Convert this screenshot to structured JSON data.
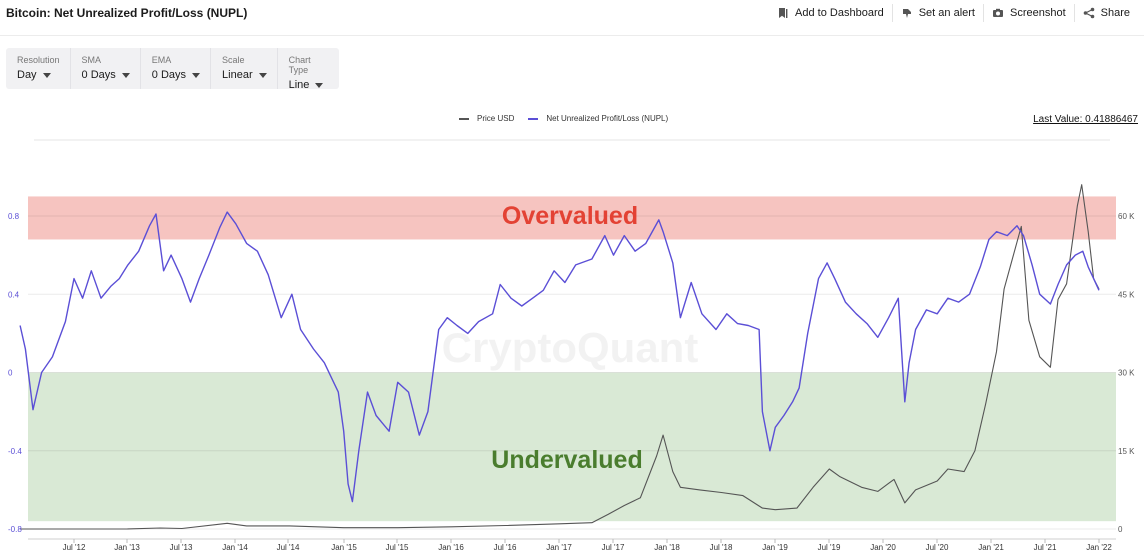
{
  "header": {
    "title": "Bitcoin: Net Unrealized Profit/Loss (NUPL)",
    "actions": [
      {
        "label": "Add to Dashboard",
        "icon": "bookmark-icon"
      },
      {
        "label": "Set an alert",
        "icon": "bell-icon"
      },
      {
        "label": "Screenshot",
        "icon": "camera-icon"
      },
      {
        "label": "Share",
        "icon": "share-icon"
      }
    ]
  },
  "controls": [
    {
      "label": "Resolution",
      "value": "Day"
    },
    {
      "label": "SMA",
      "value": "0 Days"
    },
    {
      "label": "EMA",
      "value": "0 Days"
    },
    {
      "label": "Scale",
      "value": "Linear"
    },
    {
      "label": "Chart Type",
      "value": "Line"
    }
  ],
  "legend": [
    {
      "name": "Price USD",
      "color": "#555555"
    },
    {
      "name": "Net Unrealized Profit/Loss (NUPL)",
      "color": "#5b4fd6"
    }
  ],
  "last_value": "Last Value: 0.41886467",
  "watermark": "CryptoQuant",
  "chart_data": {
    "type": "line",
    "x_ticks": [
      "Jul '12",
      "Jan '13",
      "Jul '13",
      "Jan '14",
      "Jul '14",
      "Jan '15",
      "Jul '15",
      "Jan '16",
      "Jul '16",
      "Jan '17",
      "Jul '17",
      "Jan '18",
      "Jul '18",
      "Jan '19",
      "Jul '19",
      "Jan '20",
      "Jul '20",
      "Jan '21",
      "Jul '21",
      "Jan '22"
    ],
    "x_range": [
      2012.0,
      2022.0
    ],
    "y_left": {
      "ticks": [
        "0.8",
        "0.4",
        "0",
        "-0.4",
        "-0.8"
      ],
      "tick_values": [
        0.8,
        0.4,
        0,
        -0.4,
        -0.8
      ],
      "range": [
        -0.8,
        1.0
      ]
    },
    "y_right": {
      "ticks": [
        "60 K",
        "45 K",
        "30 K",
        "15 K",
        "0"
      ],
      "tick_values": [
        60000,
        45000,
        30000,
        15000,
        0
      ],
      "range": [
        0,
        66000
      ]
    },
    "zones": [
      {
        "label": "Overvalued",
        "from": 0.68,
        "to": 0.9,
        "color": "#f4b5b0",
        "text_color": "#e34234"
      },
      {
        "label": "Undervalued",
        "from": -0.76,
        "to": 0.0,
        "color": "#cfe3cb",
        "text_color": "#4a7d2e"
      }
    ],
    "grid": true,
    "series": [
      {
        "name": "Net Unrealized Profit/Loss (NUPL)",
        "axis": "left",
        "color": "#5b4fd6",
        "points": [
          [
            2012.0,
            0.24
          ],
          [
            2012.05,
            0.12
          ],
          [
            2012.12,
            -0.19
          ],
          [
            2012.2,
            0.0
          ],
          [
            2012.3,
            0.08
          ],
          [
            2012.42,
            0.26
          ],
          [
            2012.5,
            0.48
          ],
          [
            2012.58,
            0.38
          ],
          [
            2012.66,
            0.52
          ],
          [
            2012.75,
            0.38
          ],
          [
            2012.84,
            0.44
          ],
          [
            2012.92,
            0.48
          ],
          [
            2013.0,
            0.55
          ],
          [
            2013.1,
            0.62
          ],
          [
            2013.2,
            0.75
          ],
          [
            2013.26,
            0.81
          ],
          [
            2013.33,
            0.52
          ],
          [
            2013.4,
            0.6
          ],
          [
            2013.5,
            0.48
          ],
          [
            2013.58,
            0.36
          ],
          [
            2013.66,
            0.48
          ],
          [
            2013.75,
            0.6
          ],
          [
            2013.85,
            0.74
          ],
          [
            2013.92,
            0.82
          ],
          [
            2014.0,
            0.76
          ],
          [
            2014.1,
            0.66
          ],
          [
            2014.2,
            0.62
          ],
          [
            2014.3,
            0.5
          ],
          [
            2014.42,
            0.28
          ],
          [
            2014.52,
            0.4
          ],
          [
            2014.6,
            0.22
          ],
          [
            2014.72,
            0.12
          ],
          [
            2014.82,
            0.05
          ],
          [
            2014.95,
            -0.1
          ],
          [
            2015.0,
            -0.3
          ],
          [
            2015.04,
            -0.57
          ],
          [
            2015.08,
            -0.66
          ],
          [
            2015.14,
            -0.4
          ],
          [
            2015.22,
            -0.1
          ],
          [
            2015.3,
            -0.22
          ],
          [
            2015.42,
            -0.3
          ],
          [
            2015.5,
            -0.05
          ],
          [
            2015.6,
            -0.1
          ],
          [
            2015.7,
            -0.32
          ],
          [
            2015.78,
            -0.2
          ],
          [
            2015.88,
            0.22
          ],
          [
            2015.96,
            0.28
          ],
          [
            2016.05,
            0.24
          ],
          [
            2016.15,
            0.2
          ],
          [
            2016.25,
            0.26
          ],
          [
            2016.38,
            0.3
          ],
          [
            2016.45,
            0.45
          ],
          [
            2016.55,
            0.38
          ],
          [
            2016.65,
            0.34
          ],
          [
            2016.75,
            0.38
          ],
          [
            2016.85,
            0.42
          ],
          [
            2016.95,
            0.52
          ],
          [
            2017.05,
            0.46
          ],
          [
            2017.15,
            0.55
          ],
          [
            2017.3,
            0.58
          ],
          [
            2017.42,
            0.7
          ],
          [
            2017.5,
            0.6
          ],
          [
            2017.6,
            0.7
          ],
          [
            2017.7,
            0.62
          ],
          [
            2017.8,
            0.66
          ],
          [
            2017.92,
            0.78
          ],
          [
            2017.96,
            0.72
          ],
          [
            2018.05,
            0.56
          ],
          [
            2018.12,
            0.28
          ],
          [
            2018.22,
            0.46
          ],
          [
            2018.32,
            0.3
          ],
          [
            2018.45,
            0.22
          ],
          [
            2018.55,
            0.3
          ],
          [
            2018.65,
            0.25
          ],
          [
            2018.75,
            0.24
          ],
          [
            2018.85,
            0.22
          ],
          [
            2018.88,
            -0.2
          ],
          [
            2018.95,
            -0.4
          ],
          [
            2019.0,
            -0.28
          ],
          [
            2019.08,
            -0.22
          ],
          [
            2019.16,
            -0.15
          ],
          [
            2019.22,
            -0.08
          ],
          [
            2019.3,
            0.2
          ],
          [
            2019.4,
            0.48
          ],
          [
            2019.48,
            0.56
          ],
          [
            2019.55,
            0.48
          ],
          [
            2019.65,
            0.36
          ],
          [
            2019.75,
            0.3
          ],
          [
            2019.85,
            0.25
          ],
          [
            2019.95,
            0.18
          ],
          [
            2020.05,
            0.28
          ],
          [
            2020.14,
            0.38
          ],
          [
            2020.2,
            -0.15
          ],
          [
            2020.24,
            0.05
          ],
          [
            2020.3,
            0.22
          ],
          [
            2020.4,
            0.32
          ],
          [
            2020.5,
            0.3
          ],
          [
            2020.6,
            0.38
          ],
          [
            2020.7,
            0.36
          ],
          [
            2020.8,
            0.4
          ],
          [
            2020.9,
            0.54
          ],
          [
            2020.98,
            0.68
          ],
          [
            2021.05,
            0.72
          ],
          [
            2021.15,
            0.7
          ],
          [
            2021.24,
            0.75
          ],
          [
            2021.3,
            0.7
          ],
          [
            2021.38,
            0.55
          ],
          [
            2021.45,
            0.4
          ],
          [
            2021.55,
            0.35
          ],
          [
            2021.62,
            0.45
          ],
          [
            2021.7,
            0.55
          ],
          [
            2021.78,
            0.6
          ],
          [
            2021.85,
            0.62
          ],
          [
            2021.9,
            0.54
          ],
          [
            2021.95,
            0.48
          ],
          [
            2022.0,
            0.42
          ]
        ]
      },
      {
        "name": "Price USD",
        "axis": "right",
        "color": "#555555",
        "points": [
          [
            2012.0,
            5
          ],
          [
            2012.5,
            7
          ],
          [
            2013.0,
            13
          ],
          [
            2013.3,
            200
          ],
          [
            2013.5,
            90
          ],
          [
            2013.92,
            1100
          ],
          [
            2014.1,
            600
          ],
          [
            2014.5,
            600
          ],
          [
            2015.0,
            250
          ],
          [
            2015.5,
            250
          ],
          [
            2016.0,
            430
          ],
          [
            2016.5,
            670
          ],
          [
            2017.0,
            1000
          ],
          [
            2017.3,
            1200
          ],
          [
            2017.45,
            2800
          ],
          [
            2017.6,
            4500
          ],
          [
            2017.75,
            6000
          ],
          [
            2017.9,
            14000
          ],
          [
            2017.96,
            18000
          ],
          [
            2018.05,
            11000
          ],
          [
            2018.12,
            8000
          ],
          [
            2018.3,
            7500
          ],
          [
            2018.5,
            7000
          ],
          [
            2018.7,
            6400
          ],
          [
            2018.88,
            4000
          ],
          [
            2019.0,
            3700
          ],
          [
            2019.2,
            4000
          ],
          [
            2019.35,
            8000
          ],
          [
            2019.5,
            11500
          ],
          [
            2019.6,
            10000
          ],
          [
            2019.8,
            8000
          ],
          [
            2019.95,
            7200
          ],
          [
            2020.1,
            9500
          ],
          [
            2020.2,
            5000
          ],
          [
            2020.3,
            7500
          ],
          [
            2020.5,
            9200
          ],
          [
            2020.6,
            11500
          ],
          [
            2020.75,
            11000
          ],
          [
            2020.85,
            15000
          ],
          [
            2020.95,
            24000
          ],
          [
            2021.05,
            34000
          ],
          [
            2021.12,
            46000
          ],
          [
            2021.2,
            52000
          ],
          [
            2021.28,
            58000
          ],
          [
            2021.35,
            40000
          ],
          [
            2021.45,
            33000
          ],
          [
            2021.55,
            31000
          ],
          [
            2021.62,
            44000
          ],
          [
            2021.7,
            47000
          ],
          [
            2021.8,
            62000
          ],
          [
            2021.84,
            66000
          ],
          [
            2021.9,
            57000
          ],
          [
            2021.95,
            48000
          ],
          [
            2022.0,
            46000
          ]
        ]
      }
    ]
  }
}
